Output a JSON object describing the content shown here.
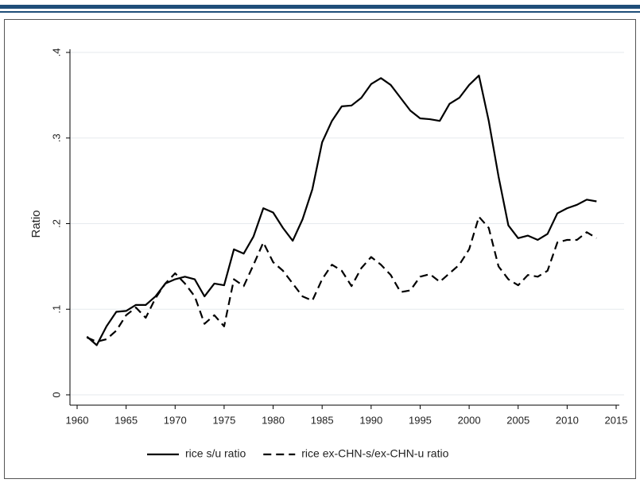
{
  "chart_data": {
    "type": "line",
    "ylabel": "Ratio",
    "x": [
      1961,
      1962,
      1963,
      1964,
      1965,
      1966,
      1967,
      1968,
      1969,
      1970,
      1971,
      1972,
      1973,
      1974,
      1975,
      1976,
      1977,
      1978,
      1979,
      1980,
      1981,
      1982,
      1983,
      1984,
      1985,
      1986,
      1987,
      1988,
      1989,
      1990,
      1991,
      1992,
      1993,
      1994,
      1995,
      1996,
      1997,
      1998,
      1999,
      2000,
      2001,
      2002,
      2003,
      2004,
      2005,
      2006,
      2007,
      2008,
      2009,
      2010,
      2011,
      2012,
      2013
    ],
    "series": [
      {
        "name": "rice s/u ratio",
        "color": "#000000",
        "dash": false,
        "values": [
          0.068,
          0.058,
          0.08,
          0.097,
          0.098,
          0.105,
          0.105,
          0.115,
          0.13,
          0.135,
          0.138,
          0.135,
          0.115,
          0.13,
          0.128,
          0.17,
          0.165,
          0.185,
          0.218,
          0.213,
          0.195,
          0.18,
          0.205,
          0.24,
          0.295,
          0.32,
          0.337,
          0.338,
          0.347,
          0.363,
          0.37,
          0.362,
          0.347,
          0.332,
          0.323,
          0.322,
          0.32,
          0.34,
          0.347,
          0.362,
          0.373,
          0.32,
          0.255,
          0.198,
          0.183,
          0.186,
          0.181,
          0.188,
          0.212,
          0.218,
          0.222,
          0.228,
          0.226
        ]
      },
      {
        "name": "rice ex-CHN-s/ex-CHN-u ratio",
        "color": "#000000",
        "dash": true,
        "values": [
          0.067,
          0.062,
          0.065,
          0.075,
          0.093,
          0.102,
          0.09,
          0.113,
          0.13,
          0.142,
          0.13,
          0.115,
          0.083,
          0.093,
          0.08,
          0.135,
          0.127,
          0.152,
          0.178,
          0.155,
          0.145,
          0.13,
          0.115,
          0.11,
          0.135,
          0.152,
          0.145,
          0.127,
          0.148,
          0.161,
          0.152,
          0.14,
          0.12,
          0.122,
          0.138,
          0.141,
          0.132,
          0.142,
          0.152,
          0.17,
          0.208,
          0.195,
          0.15,
          0.135,
          0.128,
          0.14,
          0.138,
          0.145,
          0.178,
          0.181,
          0.181,
          0.19,
          0.183
        ]
      }
    ],
    "xlim": [
      1960,
      2015
    ],
    "xticks": [
      1960,
      1965,
      1970,
      1975,
      1980,
      1985,
      1990,
      1995,
      2000,
      2005,
      2010,
      2015
    ],
    "ylim": [
      0,
      0.4
    ],
    "yticks": [
      0,
      {
        "value": 0.1,
        "label": ".1"
      },
      {
        "value": 0.2,
        "label": ".2"
      },
      {
        "value": 0.3,
        "label": ".3"
      },
      {
        "value": 0.4,
        "label": ".4"
      }
    ],
    "grid": true,
    "legend": "bottom"
  }
}
